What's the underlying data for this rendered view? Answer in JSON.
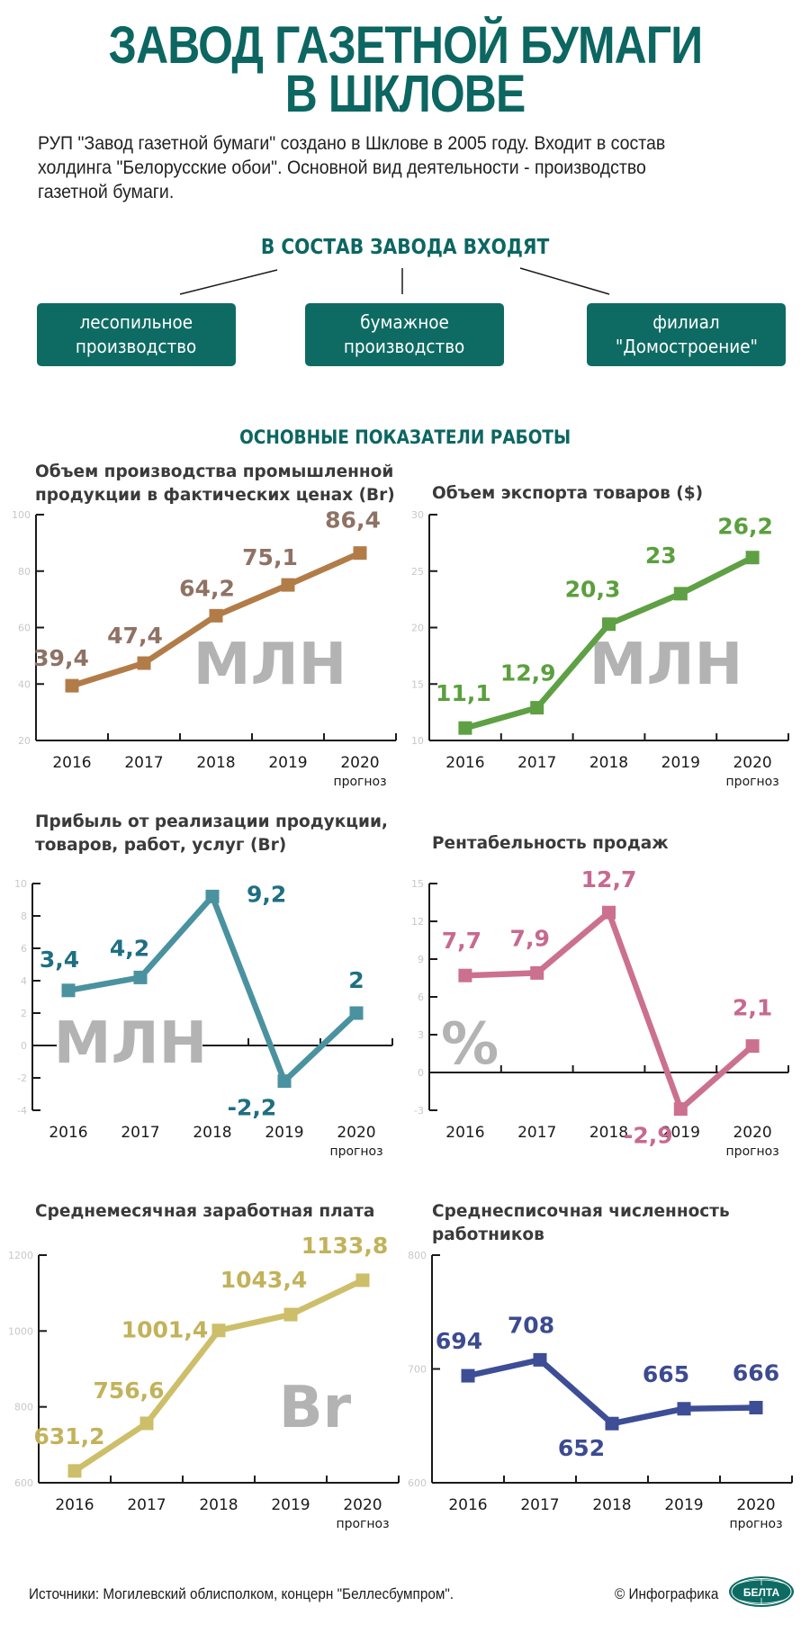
{
  "header": {
    "title_line1": "ЗАВОД ГАЗЕТНОЙ БУМАГИ",
    "title_line2": "В ШКЛОВЕ",
    "intro_lines": [
      "РУП \"Завод газетной бумаги\" создано в Шклове в 2005 году. Входит в состав",
      "холдинга \"Белорусские обои\". Основной вид деятельности - производство",
      "газетной бумаги."
    ]
  },
  "structure": {
    "title": "В СОСТАВ ЗАВОДА ВХОДЯТ",
    "units": [
      {
        "line1": "лесопильное",
        "line2": "производство"
      },
      {
        "line1": "бумажное",
        "line2": "производство"
      },
      {
        "line1": "филиал",
        "line2": "\"Домостроение\""
      }
    ]
  },
  "indicators_title": "ОСНОВНЫЕ ПОКАЗАТЕЛИ РАБОТЫ",
  "colors": {
    "brand_teal": "#0c6661",
    "production": "#b27c48",
    "production_label": "#8e7264",
    "export": "#5fa045",
    "export_label": "#5b9f3e",
    "profit": "#4a92a0",
    "profit_label": "#1f6f82",
    "rentability": "#cc7090",
    "rentability_label": "#c76990",
    "salary": "#cdbe6a",
    "salary_label": "#c2b25a",
    "staff": "#3d4d96",
    "staff_label": "#3c4b90",
    "unit_watermark": "#b3b3b3"
  },
  "chart_data": [
    {
      "id": "production",
      "type": "line",
      "title": "Объем производства промышленной продукции в фактических ценах (Br)",
      "title_lines": [
        "Объем производства промышленной",
        "продукции в фактических ценах (Br)"
      ],
      "unit_watermark": "МЛН",
      "categories": [
        "2016",
        "2017",
        "2018",
        "2019",
        "2020"
      ],
      "category_note": {
        "2020": "прогноз"
      },
      "values": [
        39.4,
        47.4,
        64.2,
        75.1,
        86.4
      ],
      "value_labels": [
        "39,4",
        "47,4",
        "64,2",
        "75,1",
        "86,4"
      ],
      "ylim": [
        20,
        100
      ],
      "yticks": [
        20,
        40,
        60,
        80,
        100
      ],
      "xlabel": "",
      "ylabel": "",
      "grid": false
    },
    {
      "id": "export",
      "type": "line",
      "title": "Объем экспорта товаров ($)",
      "title_lines": [
        "Объем экспорта товаров ($)"
      ],
      "unit_watermark": "МЛН",
      "categories": [
        "2016",
        "2017",
        "2018",
        "2019",
        "2020"
      ],
      "category_note": {
        "2020": "прогноз"
      },
      "values": [
        11.1,
        12.9,
        20.3,
        23,
        26.2
      ],
      "value_labels": [
        "11,1",
        "12,9",
        "20,3",
        "23",
        "26,2"
      ],
      "ylim": [
        10,
        30
      ],
      "yticks": [
        10,
        15,
        20,
        25,
        30
      ],
      "xlabel": "",
      "ylabel": "",
      "grid": false
    },
    {
      "id": "profit",
      "type": "line",
      "title": "Прибыль от реализации продукции, товаров, работ, услуг (Br)",
      "title_lines": [
        "Прибыль от реализации продукции,",
        "товаров, работ, услуг (Br)"
      ],
      "unit_watermark": "МЛН",
      "categories": [
        "2016",
        "2017",
        "2018",
        "2019",
        "2020"
      ],
      "category_note": {
        "2020": "прогноз"
      },
      "values": [
        3.4,
        4.2,
        9.2,
        -2.2,
        2
      ],
      "value_labels": [
        "3,4",
        "4,2",
        "9,2",
        "-2,2",
        "2"
      ],
      "ylim": [
        -4,
        10
      ],
      "yticks": [
        -4,
        -2,
        0,
        2,
        4,
        6,
        8,
        10
      ],
      "xlabel": "",
      "ylabel": "",
      "grid": false
    },
    {
      "id": "rentability",
      "type": "line",
      "title": "Рентабельность продаж",
      "title_lines": [
        "Рентабельность продаж"
      ],
      "unit_watermark": "%",
      "categories": [
        "2016",
        "2017",
        "2018",
        "2019",
        "2020"
      ],
      "category_note": {
        "2020": "прогноз"
      },
      "values": [
        7.7,
        7.9,
        12.7,
        -2.9,
        2.1
      ],
      "value_labels": [
        "7,7",
        "7,9",
        "12,7",
        "-2,9",
        "2,1"
      ],
      "ylim": [
        -3,
        15
      ],
      "yticks": [
        -3,
        0,
        3,
        6,
        9,
        12,
        15
      ],
      "xlabel": "",
      "ylabel": "",
      "grid": false
    },
    {
      "id": "salary",
      "type": "line",
      "title": "Среднемесячная заработная плата",
      "title_lines": [
        "Среднемесячная заработная плата"
      ],
      "unit_watermark": "Br",
      "categories": [
        "2016",
        "2017",
        "2018",
        "2019",
        "2020"
      ],
      "category_note": {
        "2020": "прогноз"
      },
      "values": [
        631.2,
        756.6,
        1001.4,
        1043.4,
        1133.8
      ],
      "value_labels": [
        "631,2",
        "756,6",
        "1001,4",
        "1043,4",
        "1133,8"
      ],
      "ylim": [
        600,
        1200
      ],
      "yticks": [
        600,
        800,
        1000,
        1200
      ],
      "xlabel": "",
      "ylabel": "",
      "grid": false
    },
    {
      "id": "staff",
      "type": "line",
      "title": "Среднесписочная численность работников",
      "title_lines": [
        "Среднесписочная численность",
        "работников"
      ],
      "unit_watermark": "",
      "categories": [
        "2016",
        "2017",
        "2018",
        "2019",
        "2020"
      ],
      "category_note": {
        "2020": "прогноз"
      },
      "values": [
        694,
        708,
        652,
        665,
        666
      ],
      "value_labels": [
        "694",
        "708",
        "652",
        "665",
        "666"
      ],
      "ylim": [
        600,
        800
      ],
      "yticks": [
        600,
        700,
        800
      ],
      "xlabel": "",
      "ylabel": "",
      "grid": false
    }
  ],
  "footer": {
    "sources": "Источники: Могилевский облисполком, концерн \"Беллесбумпром\".",
    "copyright": "© Инфографика",
    "logo_text": "БЕЛТА"
  }
}
